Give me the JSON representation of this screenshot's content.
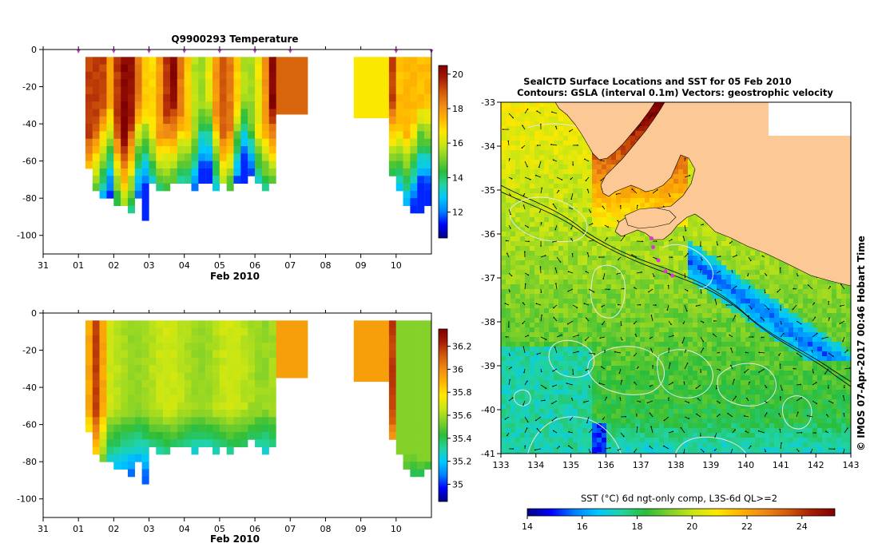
{
  "colors": {
    "land": "#fcc896",
    "jet": [
      "#00007f",
      "#0000ff",
      "#0080ff",
      "#00c8ff",
      "#22d3a0",
      "#2bbd3a",
      "#7fd02a",
      "#c8e614",
      "#ffe800",
      "#ffb400",
      "#f08a14",
      "#d25a0a",
      "#a81e05",
      "#7f0000"
    ]
  },
  "left_panels": [
    {
      "name": "temperature",
      "title": "Q9900293  Temperature",
      "xlabel": "Feb 2010",
      "x_ticks": [
        "31",
        "01",
        "02",
        "03",
        "04",
        "05",
        "06",
        "07",
        "08",
        "09",
        "10"
      ],
      "y_ticks": [
        "0",
        "-20",
        "-40",
        "-60",
        "-80",
        "-100"
      ],
      "cbar_ticks": [
        "20",
        "18",
        "16",
        "14",
        "12"
      ],
      "cbar_range": [
        10.5,
        20.5
      ],
      "cbar_values": [
        20,
        18,
        16,
        14,
        12
      ],
      "profile_days": [
        0.3,
        0.5,
        0.7,
        0.9,
        1.1,
        1.3,
        1.5,
        1.7,
        1.9,
        2.1,
        2.3,
        2.5,
        2.7,
        2.9,
        3.1,
        3.3,
        3.5,
        3.7,
        3.9,
        4.1,
        4.3,
        4.5,
        4.7,
        4.9,
        5.1,
        5.3,
        5.5,
        8.9,
        9.1,
        9.3,
        9.5,
        9.7,
        9.9
      ],
      "profile_maxdepth": [
        62,
        75,
        78,
        80,
        82,
        84,
        86,
        80,
        92,
        72,
        73,
        74,
        70,
        71,
        72,
        74,
        72,
        70,
        73,
        72,
        74,
        72,
        70,
        68,
        72,
        74,
        72,
        65,
        76,
        82,
        86,
        85,
        84
      ],
      "extra_blocks": [
        {
          "day_start": 5.5,
          "day_end": 6.5,
          "depth": 35,
          "value": 18.8
        },
        {
          "day_start": 7.8,
          "day_end": 8.8,
          "depth": 37,
          "value": 16.6
        }
      ],
      "markers_days": [
        0,
        1,
        2,
        3,
        4,
        5,
        6,
        9,
        10
      ],
      "marker_color": "#cc33cc"
    },
    {
      "name": "salinity",
      "title": "",
      "xlabel": "Feb 2010",
      "x_ticks": [
        "31",
        "01",
        "02",
        "03",
        "04",
        "05",
        "06",
        "07",
        "08",
        "09",
        "10"
      ],
      "y_ticks": [
        "0",
        "-20",
        "-40",
        "-60",
        "-80",
        "-100"
      ],
      "cbar_ticks": [
        "36.2",
        "36",
        "35.8",
        "35.6",
        "35.4",
        "35.2",
        "35"
      ],
      "cbar_range": [
        34.85,
        36.35
      ],
      "cbar_values": [
        36.2,
        36.0,
        35.8,
        35.6,
        35.4,
        35.2,
        35.0
      ],
      "profile_days": [
        0.3,
        0.5,
        0.7,
        0.9,
        1.1,
        1.3,
        1.5,
        1.7,
        1.9,
        2.1,
        2.3,
        2.5,
        2.7,
        2.9,
        3.1,
        3.3,
        3.5,
        3.7,
        3.9,
        4.1,
        4.3,
        4.5,
        4.7,
        4.9,
        5.1,
        5.3,
        5.5,
        8.9,
        9.1,
        9.3,
        9.5,
        9.7,
        9.9
      ],
      "profile_maxdepth": [
        62,
        75,
        78,
        80,
        82,
        84,
        86,
        80,
        92,
        72,
        73,
        74,
        70,
        71,
        72,
        74,
        72,
        70,
        73,
        72,
        74,
        72,
        70,
        68,
        72,
        74,
        72,
        65,
        76,
        82,
        86,
        85,
        84
      ],
      "extra_blocks": [
        {
          "day_start": 5.5,
          "day_end": 6.5,
          "depth": 35,
          "value": 35.95
        },
        {
          "day_start": 7.8,
          "day_end": 8.8,
          "depth": 37,
          "value": 35.95
        }
      ],
      "markers_days": [],
      "marker_color": "#cc33cc"
    }
  ],
  "map": {
    "title_line1": "SealCTD Surface Locations and SST for 05 Feb 2010",
    "title_line2": "Contours: GSLA (interval 0.1m) Vectors: geostrophic velocity",
    "lon_ticks": [
      "133",
      "134",
      "135",
      "136",
      "137",
      "138",
      "139",
      "140",
      "141",
      "142",
      "143"
    ],
    "lat_ticks": [
      "-33",
      "-34",
      "-35",
      "-36",
      "-37",
      "-38",
      "-39",
      "-40",
      "-41"
    ],
    "lon_range": [
      133,
      143
    ],
    "lat_range": [
      -41,
      -33
    ],
    "colorbar_label": "SST (°C) 6d ngt-only comp, L3S-6d QL>=2",
    "colorbar_ticks": [
      "14",
      "16",
      "18",
      "20",
      "22",
      "24"
    ],
    "colorbar_values": [
      14,
      16,
      18,
      20,
      22,
      24
    ],
    "colorbar_range": [
      14,
      25.2
    ],
    "credit": "© IMOS 07-Apr-2017 00:46 Hobart Time",
    "track_points": [
      {
        "lon": 137.3,
        "lat": -36.1
      },
      {
        "lon": 137.35,
        "lat": -36.3
      },
      {
        "lon": 137.5,
        "lat": -36.6
      },
      {
        "lon": 137.7,
        "lat": -36.85
      },
      {
        "lon": 137.9,
        "lat": -36.95
      }
    ]
  }
}
